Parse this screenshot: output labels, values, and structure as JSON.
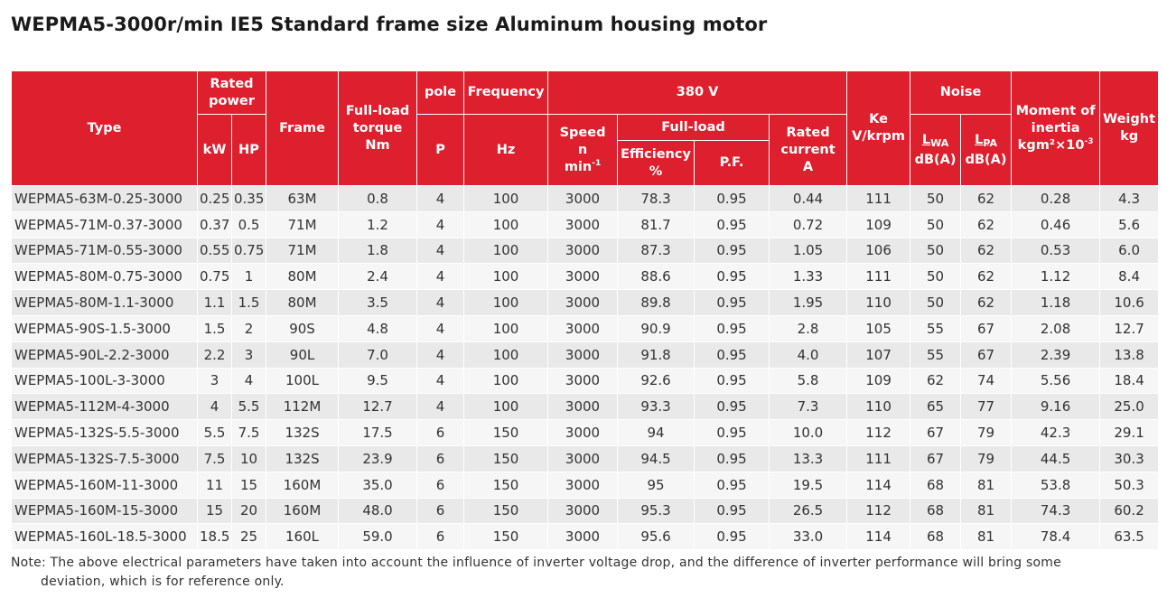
{
  "title": "WEPMA5-3000r/min IE5 Standard frame size Aluminum housing motor",
  "headers": {
    "type": "Type",
    "rated_power_l1": "Rated",
    "rated_power_l2": "power",
    "kw": "kW",
    "hp": "HP",
    "frame": "Frame",
    "torque_l1": "Full-load",
    "torque_l2": "torque",
    "torque_l3": "Nm",
    "pole": "pole",
    "pole_unit": "P",
    "frequency": "Frequency",
    "frequency_unit": "Hz",
    "voltage": "380 V",
    "speed_l1": "Speed",
    "speed_l2": "n",
    "speed_l3": "min",
    "speed_sup": "-1",
    "full_load": "Full-load",
    "efficiency_l1": "Efficiency",
    "efficiency_l2": "%",
    "pf": "P.F.",
    "current_l1": "Rated",
    "current_l2": "current",
    "current_l3": "A",
    "ke_l1": "Ke",
    "ke_l2": "V/krpm",
    "noise": "Noise",
    "lwa_l": "L",
    "lwa_sub": "WA",
    "lwa_unit": "dB(A)",
    "lpa_l": "L",
    "lpa_sub": "PA",
    "lpa_unit": "dB(A)",
    "inertia_l1": "Moment of",
    "inertia_l2": "inertia",
    "inertia_l3": "kgm²×10",
    "inertia_sup": "-3",
    "weight_l1": "Weight",
    "weight_l2": "kg"
  },
  "rows": [
    [
      "WEPMA5-63M-0.25-3000",
      "0.25",
      "0.35",
      "63M",
      "0.8",
      "4",
      "100",
      "3000",
      "78.3",
      "0.95",
      "0.44",
      "111",
      "50",
      "62",
      "0.28",
      "4.3"
    ],
    [
      "WEPMA5-71M-0.37-3000",
      "0.37",
      "0.5",
      "71M",
      "1.2",
      "4",
      "100",
      "3000",
      "81.7",
      "0.95",
      "0.72",
      "109",
      "50",
      "62",
      "0.46",
      "5.6"
    ],
    [
      "WEPMA5-71M-0.55-3000",
      "0.55",
      "0.75",
      "71M",
      "1.8",
      "4",
      "100",
      "3000",
      "87.3",
      "0.95",
      "1.05",
      "106",
      "50",
      "62",
      "0.53",
      "6.0"
    ],
    [
      "WEPMA5-80M-0.75-3000",
      "0.75",
      "1",
      "80M",
      "2.4",
      "4",
      "100",
      "3000",
      "88.6",
      "0.95",
      "1.33",
      "111",
      "50",
      "62",
      "1.12",
      "8.4"
    ],
    [
      "WEPMA5-80M-1.1-3000",
      "1.1",
      "1.5",
      "80M",
      "3.5",
      "4",
      "100",
      "3000",
      "89.8",
      "0.95",
      "1.95",
      "110",
      "50",
      "62",
      "1.18",
      "10.6"
    ],
    [
      "WEPMA5-90S-1.5-3000",
      "1.5",
      "2",
      "90S",
      "4.8",
      "4",
      "100",
      "3000",
      "90.9",
      "0.95",
      "2.8",
      "105",
      "55",
      "67",
      "2.08",
      "12.7"
    ],
    [
      "WEPMA5-90L-2.2-3000",
      "2.2",
      "3",
      "90L",
      "7.0",
      "4",
      "100",
      "3000",
      "91.8",
      "0.95",
      "4.0",
      "107",
      "55",
      "67",
      "2.39",
      "13.8"
    ],
    [
      "WEPMA5-100L-3-3000",
      "3",
      "4",
      "100L",
      "9.5",
      "4",
      "100",
      "3000",
      "92.6",
      "0.95",
      "5.8",
      "109",
      "62",
      "74",
      "5.56",
      "18.4"
    ],
    [
      "WEPMA5-112M-4-3000",
      "4",
      "5.5",
      "112M",
      "12.7",
      "4",
      "100",
      "3000",
      "93.3",
      "0.95",
      "7.3",
      "110",
      "65",
      "77",
      "9.16",
      "25.0"
    ],
    [
      "WEPMA5-132S-5.5-3000",
      "5.5",
      "7.5",
      "132S",
      "17.5",
      "6",
      "150",
      "3000",
      "94",
      "0.95",
      "10.0",
      "112",
      "67",
      "79",
      "42.3",
      "29.1"
    ],
    [
      "WEPMA5-132S-7.5-3000",
      "7.5",
      "10",
      "132S",
      "23.9",
      "6",
      "150",
      "3000",
      "94.5",
      "0.95",
      "13.3",
      "111",
      "67",
      "79",
      "44.5",
      "30.3"
    ],
    [
      "WEPMA5-160M-11-3000",
      "11",
      "15",
      "160M",
      "35.0",
      "6",
      "150",
      "3000",
      "95",
      "0.95",
      "19.5",
      "114",
      "68",
      "81",
      "53.8",
      "50.3"
    ],
    [
      "WEPMA5-160M-15-3000",
      "15",
      "20",
      "160M",
      "48.0",
      "6",
      "150",
      "3000",
      "95.3",
      "0.95",
      "26.5",
      "112",
      "68",
      "81",
      "74.3",
      "60.2"
    ],
    [
      "WEPMA5-160L-18.5-3000",
      "18.5",
      "25",
      "160L",
      "59.0",
      "6",
      "150",
      "3000",
      "95.6",
      "0.95",
      "33.0",
      "114",
      "68",
      "81",
      "78.4",
      "63.5"
    ]
  ],
  "note_line1": "Note: The above electrical parameters have taken into account the influence of inverter voltage drop, and the difference of inverter performance will bring some",
  "note_line2": "deviation, which is for reference only.",
  "colors": {
    "header_bg": "#de1f2e",
    "header_text": "#ffffff",
    "row_odd": "#e9e9e9",
    "row_even": "#f6f6f6"
  }
}
